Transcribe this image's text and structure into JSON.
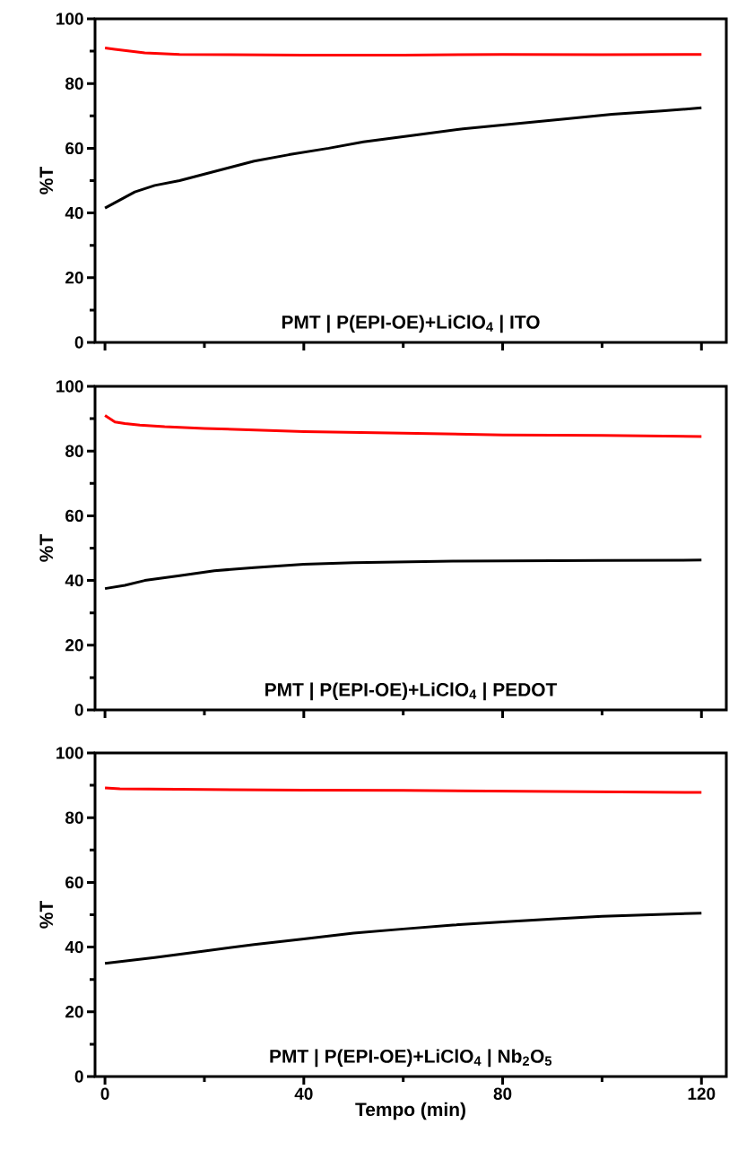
{
  "chart_data": [
    {
      "type": "line",
      "ylabel": "%T",
      "annotations": [
        "PMT | P(EPI-OE)+LiClO$_{4}$ | ITO"
      ],
      "xlim": [
        -2,
        125
      ],
      "ylim": [
        0,
        100
      ],
      "xticks": [
        0,
        {
          "value": 20,
          "label": null
        },
        40,
        {
          "value": 60,
          "label": null
        },
        80,
        {
          "value": 100,
          "label": null
        },
        120
      ],
      "yticks": [
        0,
        {
          "value": 10,
          "label": null
        },
        20,
        {
          "value": 30,
          "label": null
        },
        40,
        {
          "value": 50,
          "label": null
        },
        60,
        {
          "value": 70,
          "label": null
        },
        80,
        {
          "value": 90,
          "label": null
        },
        100
      ],
      "tick_labels": "y",
      "line_style": "solid",
      "series": [
        {
          "color": "#ff0000",
          "x": [
            0,
            2,
            5,
            8,
            12,
            15,
            25,
            40,
            60,
            80,
            100,
            120
          ],
          "values": [
            91,
            90.6,
            90,
            89.5,
            89.2,
            89,
            88.9,
            88.8,
            88.8,
            89,
            88.9,
            89
          ]
        },
        {
          "color": "#000000",
          "x": [
            0,
            3,
            6,
            10,
            15,
            20,
            25,
            30,
            37,
            45,
            52,
            62,
            72,
            82,
            92,
            102,
            112,
            120
          ],
          "values": [
            41.5,
            44,
            46.5,
            48.5,
            50,
            52,
            54,
            56,
            58,
            60,
            62,
            64,
            66,
            67.5,
            69,
            70.5,
            71.5,
            72.5
          ]
        }
      ]
    },
    {
      "type": "line",
      "ylabel": "%T",
      "annotations": [
        "PMT | P(EPI-OE)+LiClO$_{4}$ | PEDOT"
      ],
      "xlim": [
        -2,
        125
      ],
      "ylim": [
        0,
        100
      ],
      "xticks": [
        0,
        {
          "value": 20,
          "label": null
        },
        40,
        {
          "value": 60,
          "label": null
        },
        80,
        {
          "value": 100,
          "label": null
        },
        120
      ],
      "yticks": [
        0,
        {
          "value": 10,
          "label": null
        },
        20,
        {
          "value": 30,
          "label": null
        },
        40,
        {
          "value": 50,
          "label": null
        },
        60,
        {
          "value": 70,
          "label": null
        },
        80,
        {
          "value": 90,
          "label": null
        },
        100
      ],
      "tick_labels": "y",
      "line_style": "solid",
      "series": [
        {
          "color": "#ff0000",
          "x": [
            0,
            2,
            4,
            7,
            12,
            20,
            30,
            40,
            60,
            80,
            100,
            120
          ],
          "values": [
            91,
            89,
            88.5,
            88,
            87.5,
            87,
            86.5,
            86,
            85.5,
            85,
            84.8,
            84.5
          ]
        },
        {
          "color": "#000000",
          "x": [
            0,
            4,
            8,
            15,
            22,
            30,
            40,
            50,
            70,
            100,
            120
          ],
          "values": [
            37.5,
            38.5,
            40,
            41.5,
            43,
            44,
            45,
            45.5,
            46,
            46.2,
            46.3
          ]
        }
      ]
    },
    {
      "type": "line",
      "xlabel": "Tempo (min)",
      "ylabel": "%T",
      "annotations": [
        "PMT | P(EPI-OE)+LiClO$_{4}$ | Nb$_{2}$O$_{5}$"
      ],
      "xlim": [
        -2,
        125
      ],
      "ylim": [
        0,
        100
      ],
      "xticks": [
        0,
        {
          "value": 20,
          "label": null
        },
        40,
        {
          "value": 60,
          "label": null
        },
        80,
        {
          "value": 100,
          "label": null
        },
        120
      ],
      "yticks": [
        0,
        {
          "value": 10,
          "label": null
        },
        20,
        {
          "value": 30,
          "label": null
        },
        40,
        {
          "value": 50,
          "label": null
        },
        60,
        {
          "value": 70,
          "label": null
        },
        80,
        {
          "value": 90,
          "label": null
        },
        100
      ],
      "line_style": "solid",
      "series": [
        {
          "color": "#ff0000",
          "x": [
            0,
            3,
            20,
            40,
            60,
            80,
            100,
            120
          ],
          "values": [
            89.2,
            88.9,
            88.7,
            88.5,
            88.4,
            88.2,
            88,
            87.8
          ]
        },
        {
          "color": "#000000",
          "x": [
            0,
            10,
            20,
            30,
            40,
            50,
            60,
            70,
            80,
            90,
            100,
            110,
            120
          ],
          "values": [
            35,
            36.8,
            38.8,
            40.8,
            42.5,
            44.3,
            45.6,
            46.8,
            47.8,
            48.7,
            49.5,
            50,
            50.5
          ]
        }
      ]
    }
  ]
}
